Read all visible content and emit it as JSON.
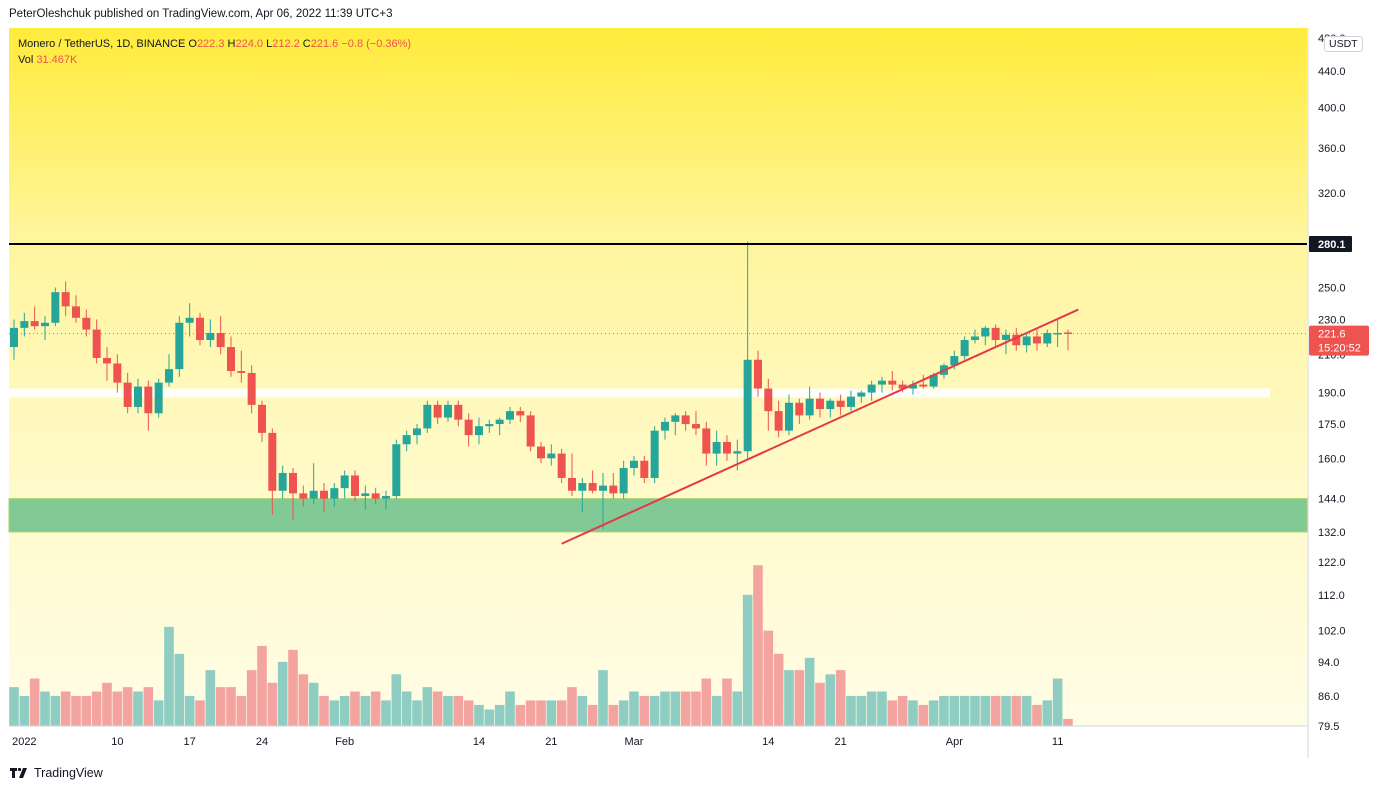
{
  "header": {
    "publish_line": "PeterOleshchuk published on TradingView.com, Apr 06, 2022 11:39 UTC+3"
  },
  "legend": {
    "symbol": "Monero / TetherUS, 1D, BINANCE",
    "o_label": "O",
    "o_value": "222.3",
    "h_label": "H",
    "h_value": "224.0",
    "l_label": "L",
    "l_value": "212.2",
    "c_label": "C",
    "c_value": "221.6",
    "change": "−0.8 (−0.36%)",
    "vol_label": "Vol",
    "vol_value": "31.467K"
  },
  "price_axis": {
    "currency": "USDT",
    "ticks": [
      "480.0",
      "440.0",
      "400.0",
      "360.0",
      "320.0",
      "280.1",
      "250.0",
      "230.0",
      "221.6",
      "210.0",
      "190.0",
      "175.0",
      "160.0",
      "144.0",
      "132.0",
      "122.0",
      "112.0",
      "102.0",
      "94.0",
      "86.0",
      "79.5"
    ],
    "resistance_label": "280.1",
    "last_price_label": "221.6",
    "countdown_label": "15:20:52"
  },
  "time_axis": {
    "labels": [
      "2022",
      "10",
      "17",
      "24",
      "Feb",
      "14",
      "21",
      "Mar",
      "14",
      "21",
      "Apr",
      "11"
    ]
  },
  "footer": {
    "brand": "TradingView",
    "logo_icon": "tradingview-logo-icon"
  },
  "colors": {
    "up": "#26a69a",
    "down": "#ef5350",
    "vol_up": "#8fcdc2",
    "vol_down": "#f4a4a0",
    "bg_top": "#ffeb3b",
    "bg_mid": "#fff9c4",
    "bg_bottom": "#fffde7",
    "support_zone": "#81c995",
    "trendline": "#e53945",
    "resistance": "#000000"
  },
  "chart_data": {
    "type": "candlestick",
    "title": "Monero / TetherUS, 1D, BINANCE",
    "scale": "log",
    "ylim": [
      79.5,
      490
    ],
    "resistance_level": 280.1,
    "resistance_label": "280.1",
    "support_zone": [
      132,
      144
    ],
    "horizontal_band": [
      188,
      192
    ],
    "trendline": {
      "from": {
        "date": "2022-02-22",
        "price": 128
      },
      "to": {
        "date": "2022-04-13",
        "price": 236
      }
    },
    "last_price": 221.6,
    "start_date": "2021-12-31",
    "series": [
      {
        "date": "2021-12-31",
        "o": 214,
        "h": 230,
        "l": 207,
        "c": 225,
        "v": 88
      },
      {
        "date": "2022-01-01",
        "o": 225,
        "h": 234,
        "l": 220,
        "c": 229,
        "v": 86
      },
      {
        "date": "2022-01-02",
        "o": 229,
        "h": 238,
        "l": 224,
        "c": 226,
        "v": 90
      },
      {
        "date": "2022-01-03",
        "o": 226,
        "h": 232,
        "l": 218,
        "c": 228,
        "v": 87
      },
      {
        "date": "2022-01-04",
        "o": 228,
        "h": 250,
        "l": 226,
        "c": 247,
        "v": 86
      },
      {
        "date": "2022-01-05",
        "o": 247,
        "h": 254,
        "l": 232,
        "c": 238,
        "v": 87
      },
      {
        "date": "2022-01-06",
        "o": 238,
        "h": 245,
        "l": 228,
        "c": 231,
        "v": 86
      },
      {
        "date": "2022-01-07",
        "o": 231,
        "h": 236,
        "l": 220,
        "c": 224,
        "v": 86
      },
      {
        "date": "2022-01-08",
        "o": 224,
        "h": 230,
        "l": 205,
        "c": 208,
        "v": 87
      },
      {
        "date": "2022-01-09",
        "o": 208,
        "h": 214,
        "l": 196,
        "c": 205,
        "v": 89
      },
      {
        "date": "2022-01-10",
        "o": 205,
        "h": 210,
        "l": 190,
        "c": 195,
        "v": 87
      },
      {
        "date": "2022-01-11",
        "o": 195,
        "h": 200,
        "l": 180,
        "c": 183,
        "v": 88
      },
      {
        "date": "2022-01-12",
        "o": 183,
        "h": 197,
        "l": 180,
        "c": 193,
        "v": 87
      },
      {
        "date": "2022-01-13",
        "o": 193,
        "h": 196,
        "l": 172,
        "c": 180,
        "v": 88
      },
      {
        "date": "2022-01-14",
        "o": 180,
        "h": 197,
        "l": 178,
        "c": 195,
        "v": 85
      },
      {
        "date": "2022-01-15",
        "o": 195,
        "h": 210,
        "l": 193,
        "c": 202,
        "v": 103
      },
      {
        "date": "2022-01-16",
        "o": 202,
        "h": 232,
        "l": 198,
        "c": 228,
        "v": 96
      },
      {
        "date": "2022-01-17",
        "o": 228,
        "h": 240,
        "l": 220,
        "c": 231,
        "v": 86
      },
      {
        "date": "2022-01-18",
        "o": 231,
        "h": 234,
        "l": 215,
        "c": 218,
        "v": 85
      },
      {
        "date": "2022-01-19",
        "o": 218,
        "h": 230,
        "l": 214,
        "c": 222,
        "v": 92
      },
      {
        "date": "2022-01-20",
        "o": 222,
        "h": 232,
        "l": 210,
        "c": 214,
        "v": 88
      },
      {
        "date": "2022-01-21",
        "o": 214,
        "h": 220,
        "l": 198,
        "c": 201,
        "v": 88
      },
      {
        "date": "2022-01-22",
        "o": 201,
        "h": 212,
        "l": 195,
        "c": 200,
        "v": 86
      },
      {
        "date": "2022-01-23",
        "o": 200,
        "h": 204,
        "l": 180,
        "c": 184,
        "v": 92
      },
      {
        "date": "2022-01-24",
        "o": 184,
        "h": 186,
        "l": 167,
        "c": 171,
        "v": 98
      },
      {
        "date": "2022-01-25",
        "o": 171,
        "h": 173,
        "l": 138,
        "c": 147,
        "v": 89
      },
      {
        "date": "2022-01-26",
        "o": 147,
        "h": 157,
        "l": 144,
        "c": 154,
        "v": 94
      },
      {
        "date": "2022-01-27",
        "o": 154,
        "h": 156,
        "l": 136,
        "c": 146,
        "v": 97
      },
      {
        "date": "2022-01-28",
        "o": 146,
        "h": 149,
        "l": 141,
        "c": 144,
        "v": 91
      },
      {
        "date": "2022-01-29",
        "o": 144,
        "h": 158,
        "l": 142,
        "c": 147,
        "v": 89
      },
      {
        "date": "2022-01-30",
        "o": 147,
        "h": 150,
        "l": 139,
        "c": 144,
        "v": 86
      },
      {
        "date": "2022-01-31",
        "o": 144,
        "h": 150,
        "l": 141,
        "c": 148,
        "v": 85
      },
      {
        "date": "2022-02-01",
        "o": 148,
        "h": 155,
        "l": 144,
        "c": 153,
        "v": 86
      },
      {
        "date": "2022-02-02",
        "o": 153,
        "h": 155,
        "l": 143,
        "c": 145,
        "v": 87
      },
      {
        "date": "2022-02-03",
        "o": 145,
        "h": 149,
        "l": 140,
        "c": 146,
        "v": 86
      },
      {
        "date": "2022-02-04",
        "o": 146,
        "h": 148,
        "l": 142,
        "c": 144,
        "v": 87
      },
      {
        "date": "2022-02-05",
        "o": 144,
        "h": 147,
        "l": 140,
        "c": 145,
        "v": 85
      },
      {
        "date": "2022-02-06",
        "o": 145,
        "h": 168,
        "l": 144,
        "c": 166,
        "v": 91
      },
      {
        "date": "2022-02-07",
        "o": 166,
        "h": 172,
        "l": 163,
        "c": 170,
        "v": 87
      },
      {
        "date": "2022-02-08",
        "o": 170,
        "h": 175,
        "l": 166,
        "c": 173,
        "v": 85
      },
      {
        "date": "2022-02-09",
        "o": 173,
        "h": 186,
        "l": 171,
        "c": 184,
        "v": 88
      },
      {
        "date": "2022-02-10",
        "o": 184,
        "h": 186,
        "l": 175,
        "c": 178,
        "v": 87
      },
      {
        "date": "2022-02-11",
        "o": 178,
        "h": 186,
        "l": 176,
        "c": 184,
        "v": 86
      },
      {
        "date": "2022-02-12",
        "o": 184,
        "h": 186,
        "l": 174,
        "c": 177,
        "v": 86
      },
      {
        "date": "2022-02-13",
        "o": 177,
        "h": 180,
        "l": 165,
        "c": 170,
        "v": 85
      },
      {
        "date": "2022-02-14",
        "o": 170,
        "h": 178,
        "l": 166,
        "c": 174,
        "v": 84
      },
      {
        "date": "2022-02-15",
        "o": 174,
        "h": 177,
        "l": 171,
        "c": 175,
        "v": 83
      },
      {
        "date": "2022-02-16",
        "o": 175,
        "h": 178,
        "l": 170,
        "c": 177,
        "v": 84
      },
      {
        "date": "2022-02-17",
        "o": 177,
        "h": 183,
        "l": 175,
        "c": 181,
        "v": 87
      },
      {
        "date": "2022-02-18",
        "o": 181,
        "h": 183,
        "l": 176,
        "c": 179,
        "v": 84
      },
      {
        "date": "2022-02-19",
        "o": 179,
        "h": 181,
        "l": 163,
        "c": 165,
        "v": 85
      },
      {
        "date": "2022-02-20",
        "o": 165,
        "h": 167,
        "l": 158,
        "c": 160,
        "v": 85
      },
      {
        "date": "2022-02-21",
        "o": 160,
        "h": 166,
        "l": 157,
        "c": 162,
        "v": 85
      },
      {
        "date": "2022-02-22",
        "o": 162,
        "h": 164,
        "l": 150,
        "c": 152,
        "v": 85
      },
      {
        "date": "2022-02-23",
        "o": 152,
        "h": 162,
        "l": 145,
        "c": 147,
        "v": 88
      },
      {
        "date": "2022-02-24",
        "o": 147,
        "h": 152,
        "l": 139,
        "c": 150,
        "v": 86
      },
      {
        "date": "2022-02-25",
        "o": 150,
        "h": 155,
        "l": 146,
        "c": 147,
        "v": 84
      },
      {
        "date": "2022-02-26",
        "o": 147,
        "h": 154,
        "l": 133,
        "c": 149,
        "v": 92
      },
      {
        "date": "2022-02-27",
        "o": 149,
        "h": 154,
        "l": 144,
        "c": 146,
        "v": 84
      },
      {
        "date": "2022-02-28",
        "o": 146,
        "h": 159,
        "l": 144,
        "c": 156,
        "v": 85
      },
      {
        "date": "2022-03-01",
        "o": 156,
        "h": 161,
        "l": 153,
        "c": 159,
        "v": 87
      },
      {
        "date": "2022-03-02",
        "o": 159,
        "h": 161,
        "l": 150,
        "c": 152,
        "v": 86
      },
      {
        "date": "2022-03-03",
        "o": 152,
        "h": 174,
        "l": 150,
        "c": 172,
        "v": 86
      },
      {
        "date": "2022-03-04",
        "o": 172,
        "h": 178,
        "l": 168,
        "c": 176,
        "v": 87
      },
      {
        "date": "2022-03-05",
        "o": 176,
        "h": 180,
        "l": 170,
        "c": 179,
        "v": 87
      },
      {
        "date": "2022-03-06",
        "o": 179,
        "h": 181,
        "l": 172,
        "c": 175,
        "v": 87
      },
      {
        "date": "2022-03-07",
        "o": 175,
        "h": 181,
        "l": 170,
        "c": 173,
        "v": 87
      },
      {
        "date": "2022-03-08",
        "o": 173,
        "h": 176,
        "l": 157,
        "c": 162,
        "v": 90
      },
      {
        "date": "2022-03-09",
        "o": 162,
        "h": 172,
        "l": 157,
        "c": 167,
        "v": 86
      },
      {
        "date": "2022-03-10",
        "o": 167,
        "h": 170,
        "l": 159,
        "c": 162,
        "v": 90
      },
      {
        "date": "2022-03-11",
        "o": 162,
        "h": 168,
        "l": 155,
        "c": 163,
        "v": 87
      },
      {
        "date": "2022-03-12",
        "o": 163,
        "h": 282,
        "l": 160,
        "c": 207,
        "v": 112
      },
      {
        "date": "2022-03-13",
        "o": 207,
        "h": 212,
        "l": 188,
        "c": 192,
        "v": 121
      },
      {
        "date": "2022-03-14",
        "o": 192,
        "h": 197,
        "l": 172,
        "c": 181,
        "v": 102
      },
      {
        "date": "2022-03-15",
        "o": 181,
        "h": 186,
        "l": 169,
        "c": 172,
        "v": 96
      },
      {
        "date": "2022-03-16",
        "o": 172,
        "h": 189,
        "l": 170,
        "c": 185,
        "v": 92
      },
      {
        "date": "2022-03-17",
        "o": 185,
        "h": 187,
        "l": 175,
        "c": 179,
        "v": 92
      },
      {
        "date": "2022-03-18",
        "o": 179,
        "h": 193,
        "l": 177,
        "c": 187,
        "v": 95
      },
      {
        "date": "2022-03-19",
        "o": 187,
        "h": 190,
        "l": 178,
        "c": 182,
        "v": 89
      },
      {
        "date": "2022-03-20",
        "o": 182,
        "h": 187,
        "l": 178,
        "c": 186,
        "v": 91
      },
      {
        "date": "2022-03-21",
        "o": 186,
        "h": 189,
        "l": 179,
        "c": 183,
        "v": 92
      },
      {
        "date": "2022-03-22",
        "o": 183,
        "h": 191,
        "l": 181,
        "c": 188,
        "v": 86
      },
      {
        "date": "2022-03-23",
        "o": 188,
        "h": 191,
        "l": 185,
        "c": 190,
        "v": 86
      },
      {
        "date": "2022-03-24",
        "o": 190,
        "h": 196,
        "l": 186,
        "c": 194,
        "v": 87
      },
      {
        "date": "2022-03-25",
        "o": 194,
        "h": 198,
        "l": 190,
        "c": 196,
        "v": 87
      },
      {
        "date": "2022-03-26",
        "o": 196,
        "h": 201,
        "l": 191,
        "c": 194,
        "v": 85
      },
      {
        "date": "2022-03-27",
        "o": 194,
        "h": 196,
        "l": 190,
        "c": 192,
        "v": 86
      },
      {
        "date": "2022-03-28",
        "o": 192,
        "h": 196,
        "l": 189,
        "c": 194,
        "v": 85
      },
      {
        "date": "2022-03-29",
        "o": 194,
        "h": 199,
        "l": 192,
        "c": 193,
        "v": 84
      },
      {
        "date": "2022-03-30",
        "o": 193,
        "h": 200,
        "l": 192,
        "c": 199,
        "v": 85
      },
      {
        "date": "2022-03-31",
        "o": 199,
        "h": 205,
        "l": 197,
        "c": 204,
        "v": 86
      },
      {
        "date": "2022-04-01",
        "o": 204,
        "h": 212,
        "l": 202,
        "c": 209,
        "v": 86
      },
      {
        "date": "2022-04-02",
        "o": 209,
        "h": 220,
        "l": 207,
        "c": 218,
        "v": 86
      },
      {
        "date": "2022-04-03",
        "o": 218,
        "h": 224,
        "l": 216,
        "c": 220,
        "v": 86
      },
      {
        "date": "2022-04-04",
        "o": 220,
        "h": 226,
        "l": 215,
        "c": 225,
        "v": 86
      },
      {
        "date": "2022-04-05",
        "o": 225,
        "h": 227,
        "l": 214,
        "c": 218,
        "v": 86
      },
      {
        "date": "2022-04-06",
        "o": 218,
        "h": 224,
        "l": 210,
        "c": 221,
        "v": 86
      },
      {
        "date": "2022-04-07",
        "o": 221,
        "h": 225,
        "l": 212,
        "c": 215,
        "v": 86
      },
      {
        "date": "2022-04-08",
        "o": 215,
        "h": 222,
        "l": 211,
        "c": 220,
        "v": 86
      },
      {
        "date": "2022-04-09",
        "o": 220,
        "h": 224,
        "l": 212,
        "c": 216,
        "v": 84
      },
      {
        "date": "2022-04-10",
        "o": 216,
        "h": 224,
        "l": 214,
        "c": 222,
        "v": 85
      },
      {
        "date": "2022-04-11",
        "o": 222,
        "h": 230,
        "l": 214,
        "c": 222,
        "v": 90
      },
      {
        "date": "2022-04-12",
        "o": 222.3,
        "h": 224.0,
        "l": 212.2,
        "c": 221.6,
        "v": 81
      }
    ]
  }
}
